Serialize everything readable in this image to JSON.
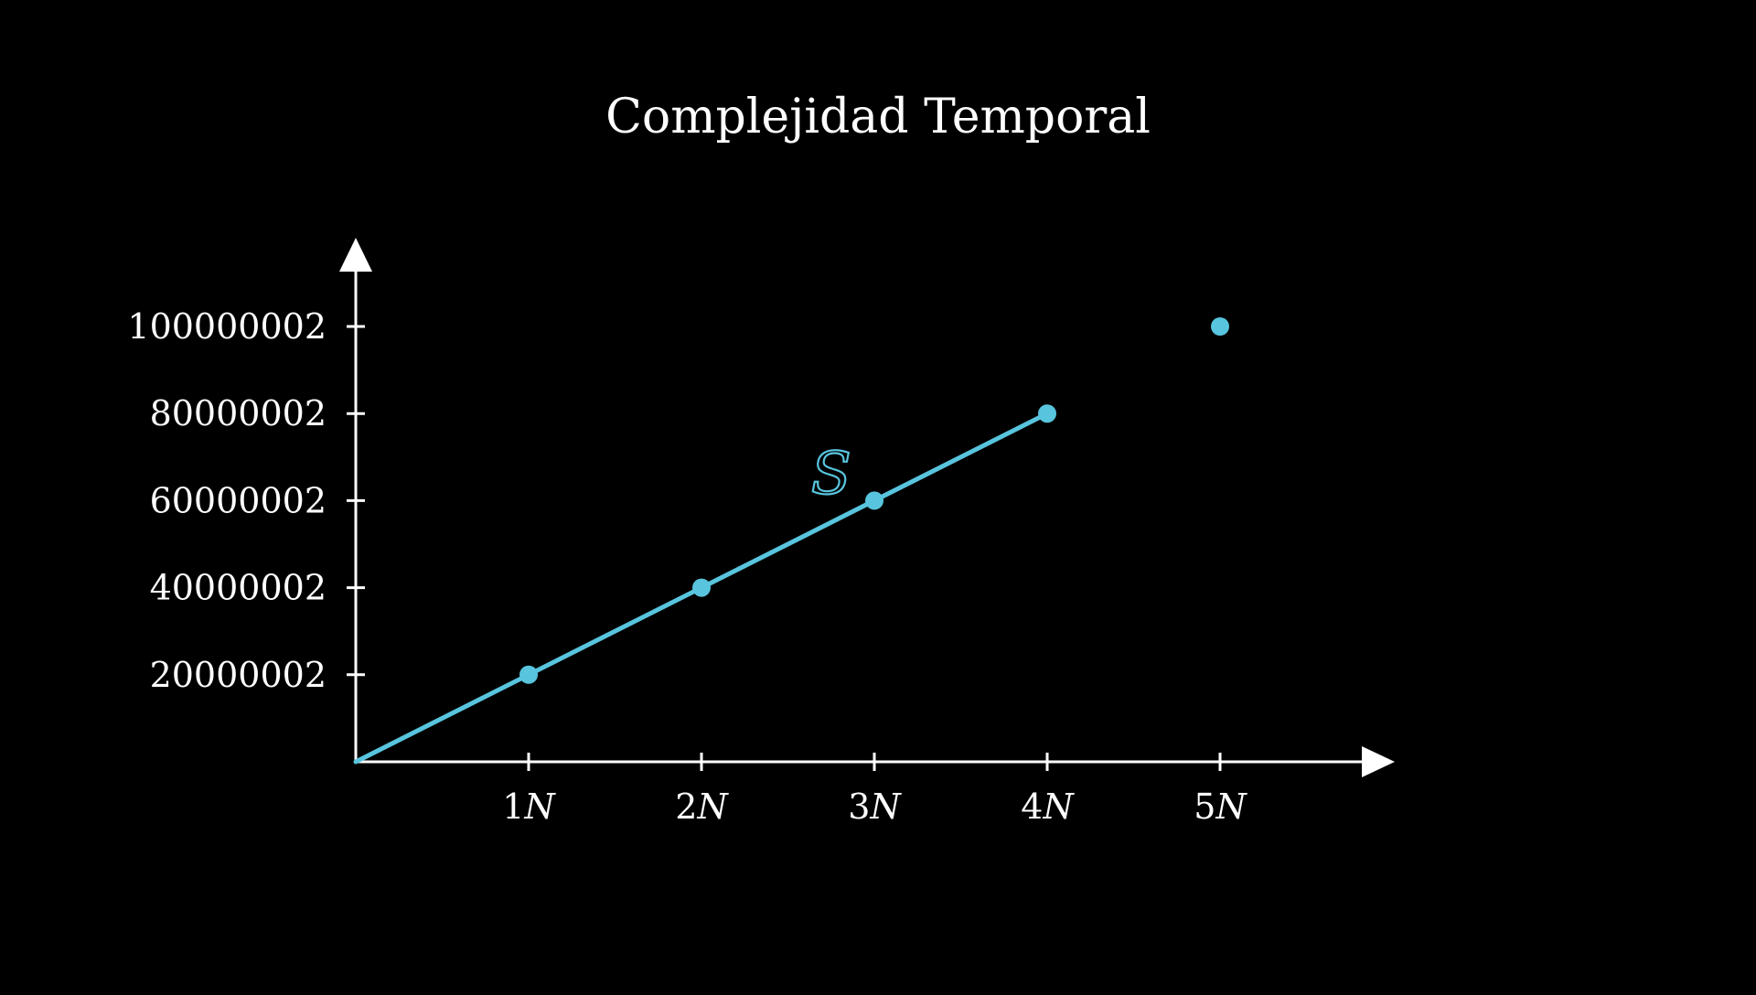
{
  "chart_data": {
    "type": "line",
    "title": "Complejidad Temporal",
    "xlabel": "",
    "ylabel": "",
    "x": [
      "1N",
      "2N",
      "3N",
      "4N",
      "5N"
    ],
    "x_values": [
      1,
      2,
      3,
      4,
      5
    ],
    "x_tick_labels": [
      "1N",
      "2N",
      "3N",
      "4N",
      "5N"
    ],
    "y_ticks": [
      20000002,
      40000002,
      60000002,
      80000002,
      100000002
    ],
    "y_tick_labels": [
      "20000002",
      "40000002",
      "60000002",
      "80000002",
      "100000002"
    ],
    "xlim": [
      0,
      5.9
    ],
    "ylim": [
      0,
      120000000
    ],
    "grid": false,
    "series": [
      {
        "name": "S",
        "color": "#58c4dd",
        "line_x": [
          0,
          1,
          2,
          3,
          4
        ],
        "line_y": [
          0,
          20000002,
          40000002,
          60000002,
          80000002
        ],
        "points_x": [
          1,
          2,
          3,
          4,
          5
        ],
        "points_y": [
          20000002,
          40000002,
          60000002,
          80000002,
          100000002
        ]
      }
    ],
    "colors": {
      "background": "#000000",
      "axes": "#ffffff",
      "series": "#58c4dd"
    }
  }
}
